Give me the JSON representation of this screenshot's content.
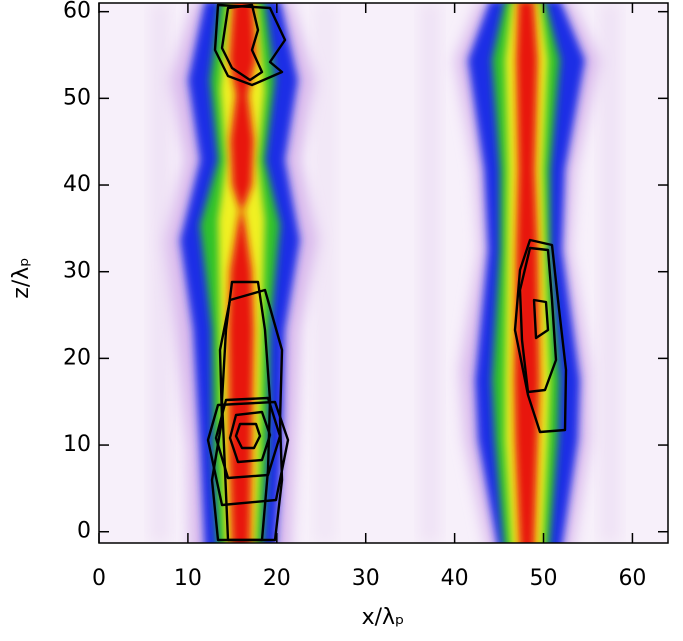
{
  "chart_data": {
    "type": "heatmap",
    "xlabel": "x/λₚ",
    "ylabel": "z/λₚ",
    "xlim": [
      0,
      64
    ],
    "ylim": [
      -1.3,
      61
    ],
    "xticks": [
      0,
      10,
      20,
      30,
      40,
      50,
      60
    ],
    "yticks": [
      0,
      10,
      20,
      30,
      40,
      50,
      60
    ]
  }
}
